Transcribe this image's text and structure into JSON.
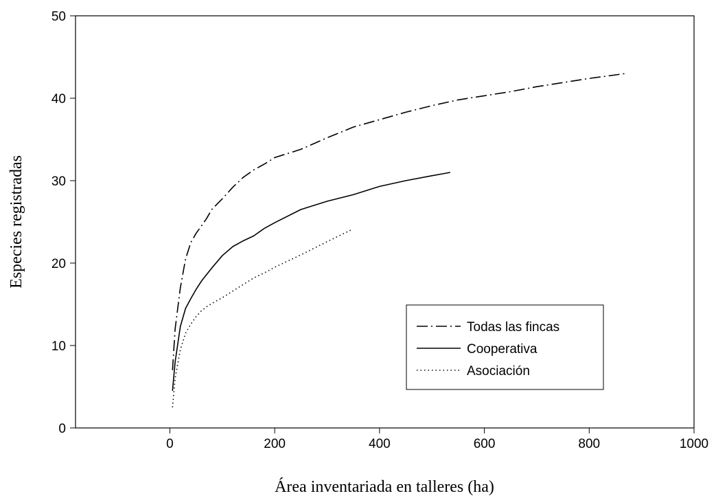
{
  "chart_data": {
    "type": "line",
    "title": "",
    "xlabel": "Área inventariada en talleres (ha)",
    "ylabel": "Especies registradas",
    "xlim": [
      -180,
      1000
    ],
    "ylim": [
      0,
      50
    ],
    "xticks": [
      0,
      200,
      400,
      600,
      800,
      1000
    ],
    "yticks": [
      0,
      10,
      20,
      30,
      40,
      50
    ],
    "xtick_labels": [
      "0",
      "200",
      "400",
      "600",
      "800",
      "1000"
    ],
    "ytick_labels": [
      "0",
      "10",
      "20",
      "30",
      "40",
      "50"
    ],
    "grid": false,
    "legend_position": "lower-right",
    "series": [
      {
        "name": "Todas las fincas",
        "style": "dash-dot",
        "x": [
          5,
          10,
          20,
          30,
          40,
          50,
          60,
          70,
          80,
          100,
          120,
          140,
          160,
          180,
          200,
          250,
          300,
          350,
          400,
          450,
          500,
          550,
          600,
          650,
          700,
          750,
          800,
          870
        ],
        "y": [
          7,
          12,
          17,
          20.5,
          22.5,
          23.6,
          24.5,
          25.4,
          26.5,
          27.8,
          29.2,
          30.4,
          31.3,
          32,
          32.8,
          33.8,
          35.2,
          36.5,
          37.4,
          38.3,
          39.1,
          39.8,
          40.3,
          40.8,
          41.4,
          41.9,
          42.4,
          43
        ]
      },
      {
        "name": "Cooperativa",
        "style": "solid",
        "x": [
          5,
          10,
          20,
          30,
          40,
          50,
          60,
          70,
          80,
          100,
          120,
          140,
          160,
          180,
          200,
          250,
          300,
          350,
          400,
          450,
          500,
          535
        ],
        "y": [
          4.5,
          8,
          12.3,
          14.5,
          15.7,
          16.8,
          17.8,
          18.6,
          19.4,
          20.9,
          22,
          22.7,
          23.3,
          24.2,
          24.9,
          26.5,
          27.5,
          28.3,
          29.3,
          30,
          30.6,
          31
        ]
      },
      {
        "name": "Asociación",
        "style": "dotted",
        "x": [
          5,
          10,
          20,
          30,
          40,
          50,
          60,
          70,
          80,
          100,
          120,
          140,
          160,
          180,
          200,
          250,
          300,
          345
        ],
        "y": [
          2.5,
          6,
          9.5,
          11.5,
          12.6,
          13.5,
          14.2,
          14.7,
          15.1,
          15.8,
          16.6,
          17.4,
          18.2,
          18.8,
          19.5,
          21,
          22.6,
          24
        ]
      }
    ]
  }
}
